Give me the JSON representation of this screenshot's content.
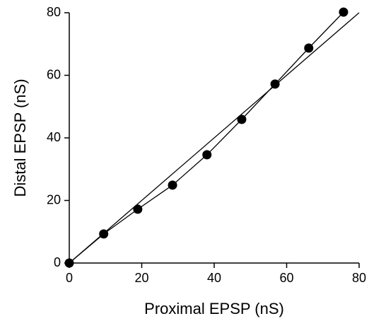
{
  "chart_data": {
    "type": "scatter",
    "xlabel": "Proximal EPSP (nS)",
    "ylabel": "Distal EPSP (nS)",
    "x": [
      0,
      9.5,
      18.9,
      28.5,
      38.0,
      47.6,
      56.8,
      66.1,
      75.7
    ],
    "series": [
      {
        "color": "#000000",
        "values": [
          0,
          9.3,
          17.2,
          24.9,
          34.6,
          45.9,
          57.2,
          68.7,
          80.2
        ]
      }
    ],
    "reference_line": {
      "x": [
        0,
        80
      ],
      "values": [
        0,
        80
      ],
      "color": "#000000"
    },
    "xlim": [
      0,
      80
    ],
    "ylim": [
      0,
      80
    ],
    "xticks": [
      0,
      20,
      40,
      60,
      80
    ],
    "yticks": [
      0,
      20,
      40,
      60,
      80
    ]
  }
}
